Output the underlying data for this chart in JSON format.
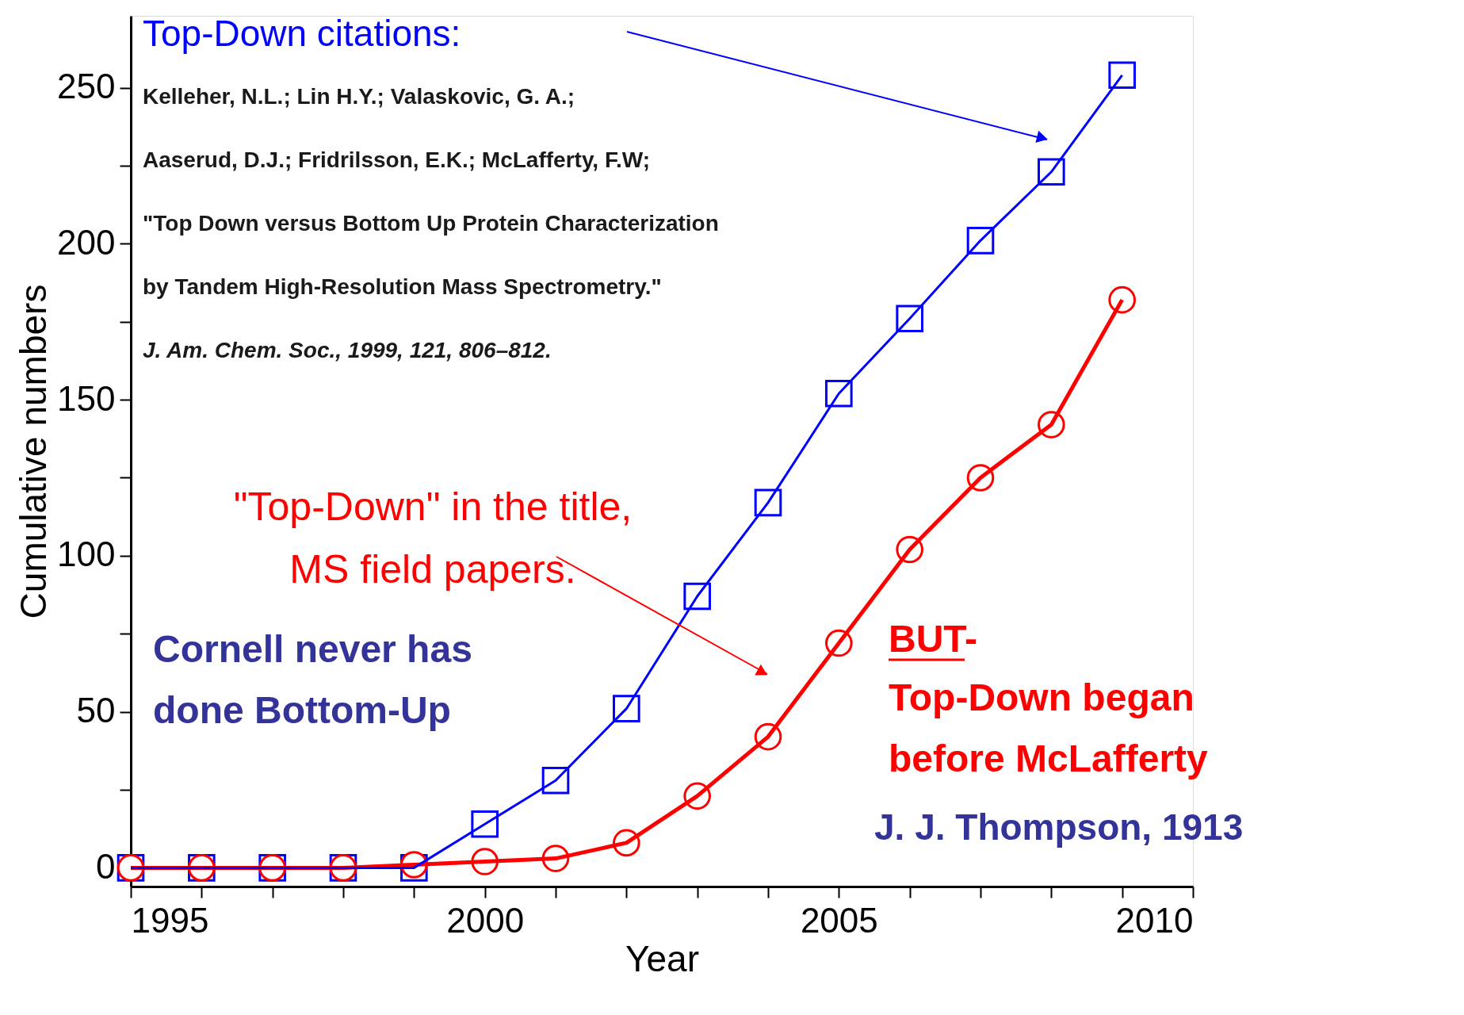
{
  "chart_data": {
    "type": "line",
    "xlabel": "Year",
    "ylabel": "Cumulative numbers",
    "x": [
      1995,
      1996,
      1997,
      1998,
      1999,
      2000,
      2001,
      2002,
      2003,
      2004,
      2005,
      2006,
      2007,
      2008,
      2009
    ],
    "series": [
      {
        "color": "#0000ff",
        "marker": "square",
        "values": [
          0,
          0,
          0,
          0,
          0,
          14,
          28,
          51,
          87,
          117,
          152,
          176,
          201,
          223,
          254
        ]
      },
      {
        "color": "#ff0000",
        "marker": "circle",
        "values": [
          0,
          0,
          0,
          0,
          1,
          2,
          3,
          8,
          23,
          42,
          72,
          102,
          125,
          142,
          182
        ]
      }
    ],
    "xlim": [
      1995,
      2010
    ],
    "xticks": [
      1995,
      {
        "value": 1996,
        "label": null
      },
      {
        "value": 1997,
        "label": null
      },
      {
        "value": 1998,
        "label": null
      },
      {
        "value": 1999,
        "label": null
      },
      2000,
      {
        "value": 2001,
        "label": null
      },
      {
        "value": 2002,
        "label": null
      },
      {
        "value": 2003,
        "label": null
      },
      {
        "value": 2004,
        "label": null
      },
      2005,
      {
        "value": 2006,
        "label": null
      },
      {
        "value": 2007,
        "label": null
      },
      {
        "value": 2008,
        "label": null
      },
      {
        "value": 2009,
        "label": null
      },
      2010
    ],
    "ylim": [
      -6,
      273
    ],
    "yticks": [
      0,
      {
        "value": 25,
        "label": null
      },
      50,
      {
        "value": 75,
        "label": null
      },
      100,
      {
        "value": 125,
        "label": null
      },
      150,
      {
        "value": 175,
        "label": null
      },
      200,
      {
        "value": 225,
        "label": null
      },
      250
    ],
    "grid": false,
    "line_style": "solid",
    "annotations": [
      "Top-Down citations:",
      "Kelleher, N.L.; Lin H.Y.; Valaskovic, G. A.;",
      "Aaserud, D.J.; Fridrilsson, E.K.; McLafferty, F.W;",
      "\"Top Down versus Bottom Up Protein Characterization",
      "by Tandem High-Resolution Mass Spectrometry.\"",
      "J. Am. Chem. Soc., 1999, 121, 806–812.",
      "\"Top-Down\" in the title,",
      "MS field papers.",
      "Cornell never has",
      "done Bottom-Up",
      "BUT-",
      "Top-Down began",
      "before McLafferty",
      "J. J. Thompson, 1913"
    ]
  }
}
